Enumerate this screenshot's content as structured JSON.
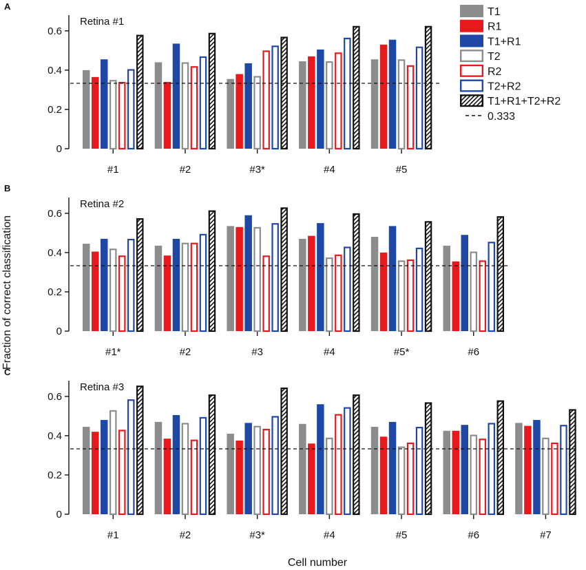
{
  "figure": {
    "ylabel": "Fraction of correct classification",
    "xlabel": "Cell number"
  },
  "colors": {
    "T1": "#8c8c8c",
    "R1": "#e8191c",
    "T1+R1": "#1f48a6",
    "T2": "#8c8c8c",
    "R2": "#e8191c",
    "T2+R2": "#1f48a6",
    "T1+R1+T2+R2": "#111111",
    "chance": "#111111"
  },
  "legend": [
    {
      "key": "T1",
      "label": "T1",
      "style": "filled"
    },
    {
      "key": "R1",
      "label": "R1",
      "style": "filled"
    },
    {
      "key": "T1+R1",
      "label": "T1+R1",
      "style": "filled"
    },
    {
      "key": "T2",
      "label": "T2",
      "style": "outline"
    },
    {
      "key": "R2",
      "label": "R2",
      "style": "outline"
    },
    {
      "key": "T2+R2",
      "label": "T2+R2",
      "style": "outline"
    },
    {
      "key": "T1+R1+T2+R2",
      "label": "T1+R1+T2+R2",
      "style": "hatched"
    },
    {
      "key": "chance",
      "label": "0.333",
      "style": "dashed"
    }
  ],
  "chart_data": [
    {
      "type": "bar",
      "panel_label": "A",
      "title": "Retina #1",
      "categories": [
        "#1",
        "#2",
        "#3*",
        "#4",
        "#5"
      ],
      "ylim": [
        0,
        0.68
      ],
      "yticks": [
        0,
        0.2,
        0.4,
        0.6
      ],
      "ytick_labels": [
        "0",
        "0.2",
        "0.4",
        "0.6"
      ],
      "reference_line": 0.333,
      "series": [
        {
          "name": "T1",
          "values": [
            0.4,
            0.44,
            0.355,
            0.445,
            0.455
          ]
        },
        {
          "name": "R1",
          "values": [
            0.365,
            0.34,
            0.38,
            0.47,
            0.53
          ]
        },
        {
          "name": "T1+R1",
          "values": [
            0.455,
            0.535,
            0.435,
            0.505,
            0.555
          ]
        },
        {
          "name": "T2",
          "values": [
            0.35,
            0.44,
            0.37,
            0.445,
            0.455
          ]
        },
        {
          "name": "R2",
          "values": [
            0.34,
            0.42,
            0.5,
            0.49,
            0.425
          ]
        },
        {
          "name": "T2+R2",
          "values": [
            0.405,
            0.47,
            0.525,
            0.565,
            0.52
          ]
        },
        {
          "name": "T1+R1+T2+R2",
          "values": [
            0.58,
            0.59,
            0.57,
            0.625,
            0.625
          ]
        }
      ]
    },
    {
      "type": "bar",
      "panel_label": "B",
      "title": "Retina #2",
      "categories": [
        "#1*",
        "#2",
        "#3",
        "#4",
        "#5*",
        "#6"
      ],
      "ylim": [
        0,
        0.68
      ],
      "yticks": [
        0,
        0.2,
        0.4,
        0.6
      ],
      "ytick_labels": [
        "0",
        "0.2",
        "0.4",
        "0.6"
      ],
      "reference_line": 0.333,
      "series": [
        {
          "name": "T1",
          "values": [
            0.445,
            0.435,
            0.535,
            0.47,
            0.48,
            0.435
          ]
        },
        {
          "name": "R1",
          "values": [
            0.405,
            0.385,
            0.53,
            0.485,
            0.4,
            0.355
          ]
        },
        {
          "name": "T1+R1",
          "values": [
            0.47,
            0.47,
            0.59,
            0.55,
            0.535,
            0.49
          ]
        },
        {
          "name": "T2",
          "values": [
            0.42,
            0.45,
            0.53,
            0.375,
            0.36,
            0.405
          ]
        },
        {
          "name": "R2",
          "values": [
            0.385,
            0.45,
            0.385,
            0.39,
            0.365,
            0.36
          ]
        },
        {
          "name": "T2+R2",
          "values": [
            0.47,
            0.495,
            0.55,
            0.43,
            0.425,
            0.455
          ]
        },
        {
          "name": "T1+R1+T2+R2",
          "values": [
            0.575,
            0.615,
            0.63,
            0.6,
            0.56,
            0.585
          ]
        }
      ]
    },
    {
      "type": "bar",
      "panel_label": "C",
      "title": "Retina #3",
      "categories": [
        "#1",
        "#2",
        "#3*",
        "#4",
        "#5",
        "#6",
        "#7"
      ],
      "ylim": [
        0,
        0.68
      ],
      "yticks": [
        0,
        0.2,
        0.4,
        0.6
      ],
      "ytick_labels": [
        "0",
        "0.2",
        "0.4",
        "0.6"
      ],
      "reference_line": 0.333,
      "series": [
        {
          "name": "T1",
          "values": [
            0.445,
            0.47,
            0.41,
            0.46,
            0.445,
            0.425,
            0.465
          ]
        },
        {
          "name": "R1",
          "values": [
            0.42,
            0.385,
            0.375,
            0.36,
            0.395,
            0.425,
            0.45
          ]
        },
        {
          "name": "T1+R1",
          "values": [
            0.48,
            0.505,
            0.465,
            0.56,
            0.47,
            0.455,
            0.48
          ]
        },
        {
          "name": "T2",
          "values": [
            0.53,
            0.465,
            0.45,
            0.39,
            0.345,
            0.405,
            0.39
          ]
        },
        {
          "name": "R2",
          "values": [
            0.43,
            0.38,
            0.435,
            0.51,
            0.365,
            0.385,
            0.365
          ]
        },
        {
          "name": "T2+R2",
          "values": [
            0.585,
            0.495,
            0.5,
            0.545,
            0.445,
            0.465,
            0.455
          ]
        },
        {
          "name": "T1+R1+T2+R2",
          "values": [
            0.655,
            0.61,
            0.645,
            0.61,
            0.57,
            0.58,
            0.535
          ]
        }
      ]
    }
  ]
}
